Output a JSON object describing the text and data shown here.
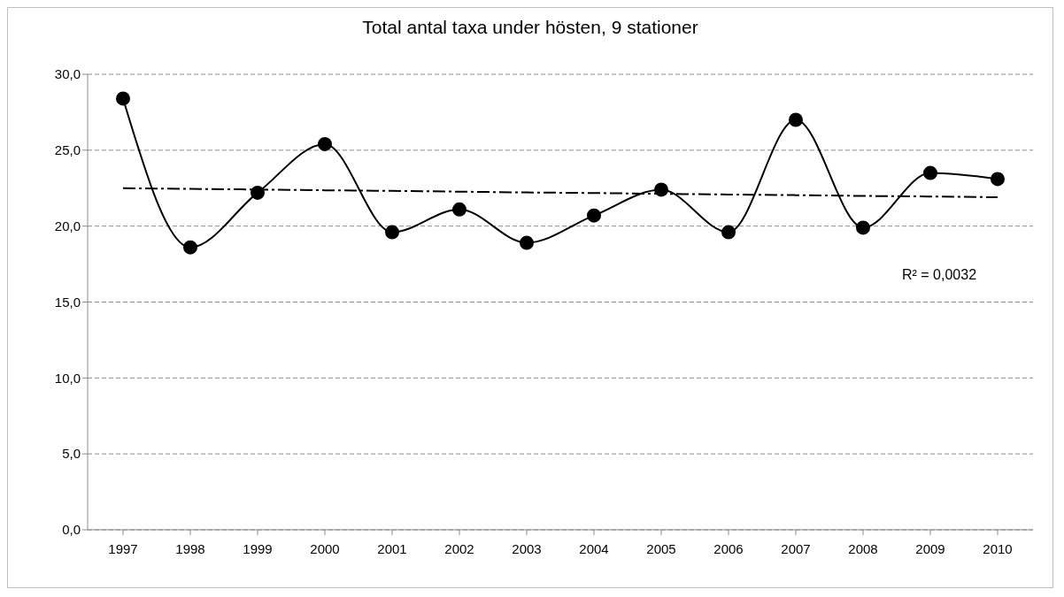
{
  "chart_data": {
    "type": "line",
    "title": "Total antal taxa under hösten, 9 stationer",
    "categories": [
      "1997",
      "1998",
      "1999",
      "2000",
      "2001",
      "2002",
      "2003",
      "2004",
      "2005",
      "2006",
      "2007",
      "2008",
      "2009",
      "2010"
    ],
    "series": [
      {
        "color": "#000000",
        "values": [
          28.4,
          18.6,
          22.2,
          25.4,
          19.6,
          21.1,
          18.9,
          20.7,
          22.4,
          19.6,
          27.0,
          19.9,
          23.5,
          23.1
        ],
        "marker": "circle",
        "line_style": "solid"
      },
      {
        "type": "line",
        "color": "#000000",
        "values": [
          22.5,
          22.45,
          22.41,
          22.36,
          22.32,
          22.27,
          22.22,
          22.18,
          22.13,
          22.08,
          22.04,
          21.99,
          21.95,
          21.9
        ],
        "marker": "none",
        "line_style": "dashed"
      }
    ],
    "ylim": [
      0,
      30
    ],
    "yticks": [
      {
        "value": 0,
        "label": "0,0"
      },
      {
        "value": 5,
        "label": "5,0"
      },
      {
        "value": 10,
        "label": "10,0"
      },
      {
        "value": 15,
        "label": "15,0"
      },
      {
        "value": 20,
        "label": "20,0"
      },
      {
        "value": 25,
        "label": "25,0"
      },
      {
        "value": 30,
        "label": "30,0"
      }
    ],
    "grid": "y",
    "annotations": [
      "R² = 0,0032"
    ]
  }
}
